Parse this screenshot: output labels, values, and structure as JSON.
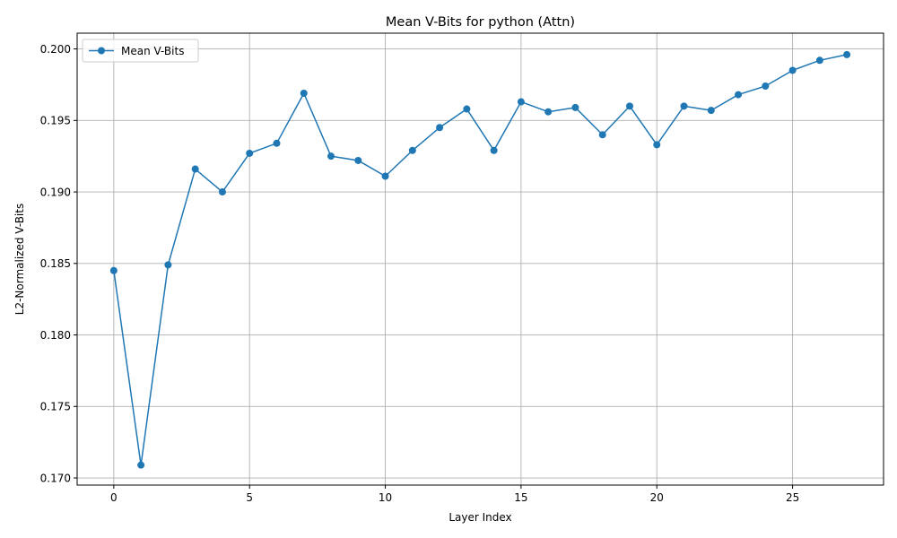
{
  "chart_data": {
    "type": "line",
    "title": "Mean V-Bits for python (Attn)",
    "xlabel": "Layer Index",
    "ylabel": "L2-Normalized V-Bits",
    "xlim": [
      -1.35,
      28.35
    ],
    "ylim": [
      0.1695,
      0.2011
    ],
    "xticks": [
      0,
      5,
      10,
      15,
      20,
      25
    ],
    "xtick_labels": [
      "0",
      "5",
      "10",
      "15",
      "20",
      "25"
    ],
    "yticks": [
      0.17,
      0.175,
      0.18,
      0.185,
      0.19,
      0.195,
      0.2
    ],
    "ytick_labels": [
      "0.170",
      "0.175",
      "0.180",
      "0.185",
      "0.190",
      "0.195",
      "0.200"
    ],
    "grid": true,
    "legend_position": "top-left",
    "series": [
      {
        "name": "Mean V-Bits",
        "color": "#1f77b4",
        "marker": "circle",
        "x": [
          0,
          1,
          2,
          3,
          4,
          5,
          6,
          7,
          8,
          9,
          10,
          11,
          12,
          13,
          14,
          15,
          16,
          17,
          18,
          19,
          20,
          21,
          22,
          23,
          24,
          25,
          26,
          27
        ],
        "values": [
          0.1845,
          0.1709,
          0.1849,
          0.1916,
          0.19,
          0.1927,
          0.1934,
          0.1969,
          0.1925,
          0.1922,
          0.1911,
          0.1929,
          0.1945,
          0.1958,
          0.1929,
          0.1963,
          0.1956,
          0.1959,
          0.194,
          0.196,
          0.1933,
          0.196,
          0.1957,
          0.1968,
          0.1974,
          0.1985,
          0.1992,
          0.1996
        ]
      }
    ]
  }
}
